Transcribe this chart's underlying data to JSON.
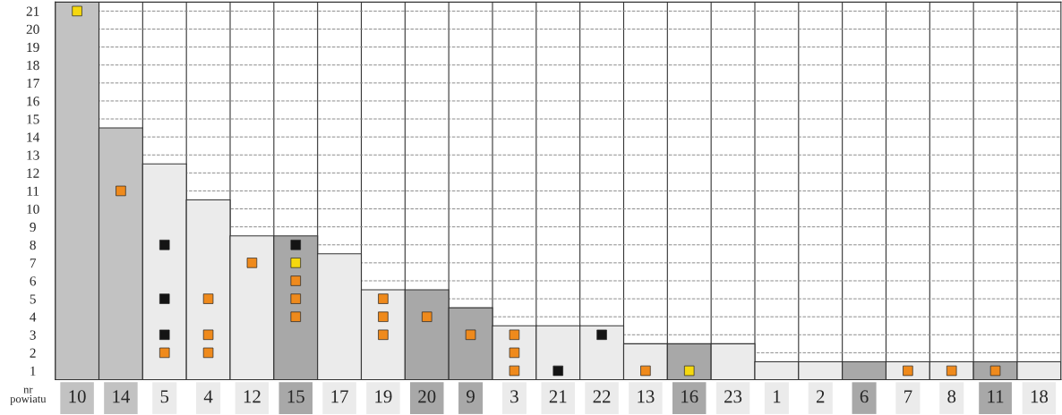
{
  "chart_data": {
    "type": "bar",
    "xlabel": "nr powiatu",
    "categories": [
      "10",
      "14",
      "5",
      "4",
      "12",
      "15",
      "17",
      "19",
      "20",
      "9",
      "3",
      "21",
      "22",
      "13",
      "16",
      "23",
      "1",
      "2",
      "6",
      "7",
      "8",
      "11",
      "18"
    ],
    "values": [
      21,
      14,
      12,
      10,
      8,
      8,
      7,
      5,
      5,
      4,
      3,
      3,
      3,
      2,
      2,
      2,
      1,
      1,
      1,
      1,
      1,
      1,
      1
    ],
    "base": [
      0.5,
      0.5,
      0.5,
      0.5,
      0.5,
      0.5,
      0.5,
      0.5,
      0.5,
      0.5,
      0.5,
      0.5,
      0.5,
      0.5,
      0.5,
      0.5,
      0.5,
      0.5,
      0.5,
      0.5,
      0.5,
      0.5,
      0.5
    ],
    "colors": [
      "#c2c2c2",
      "#c2c2c2",
      "#ebebeb",
      "#ebebeb",
      "#ebebeb",
      "#a8a8a8",
      "#ebebeb",
      "#ebebeb",
      "#a8a8a8",
      "#a8a8a8",
      "#ebebeb",
      "#ebebeb",
      "#ebebeb",
      "#ebebeb",
      "#a8a8a8",
      "#ebebeb",
      "#ebebeb",
      "#ebebeb",
      "#a8a8a8",
      "#ebebeb",
      "#ebebeb",
      "#a8a8a8",
      "#ebebeb"
    ],
    "series": [
      {
        "type": "scatter",
        "color": "#f5d80f",
        "x": [
          "10",
          "15",
          "16"
        ],
        "values": [
          21,
          7,
          1
        ]
      },
      {
        "type": "scatter",
        "color": "#ef8a1c",
        "x": [
          "14",
          "5",
          "4",
          "4",
          "4",
          "12",
          "15",
          "15",
          "15",
          "19",
          "19",
          "19",
          "20",
          "9",
          "3",
          "3",
          "3",
          "13",
          "7",
          "8",
          "11"
        ],
        "values": [
          11,
          2,
          5,
          3,
          2,
          7,
          6,
          5,
          4,
          5,
          4,
          3,
          4,
          3,
          3,
          2,
          1,
          1,
          1,
          1,
          1
        ]
      },
      {
        "type": "scatter",
        "color": "#141414",
        "x": [
          "5",
          "5",
          "5",
          "15",
          "21",
          "22"
        ],
        "values": [
          8,
          5,
          3,
          8,
          1,
          3
        ]
      }
    ],
    "marker": "square",
    "ylim": [
      0.5,
      21.5
    ],
    "yticks": [
      1,
      2,
      3,
      4,
      5,
      6,
      7,
      8,
      9,
      10,
      11,
      12,
      13,
      14,
      15,
      16,
      17,
      18,
      19,
      20,
      21
    ],
    "grid": true
  }
}
